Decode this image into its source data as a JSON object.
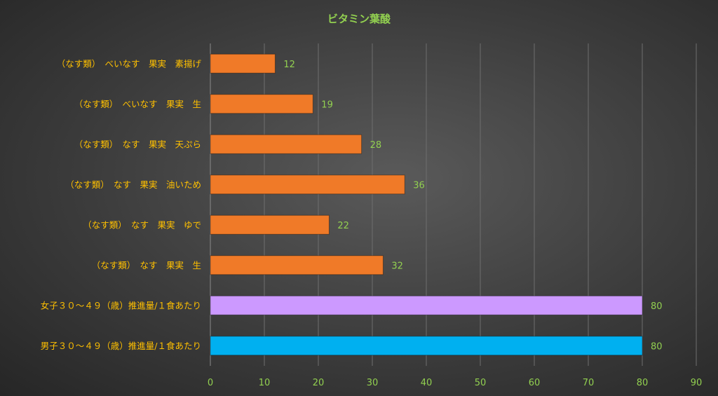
{
  "chart_data": {
    "type": "bar",
    "orientation": "horizontal",
    "title": "ビタミン葉酸",
    "categories": [
      "（なす類）　べいなす　果実　素揚げ",
      "（なす類）　べいなす　果実　生",
      "（なす類）　なす　果実　天ぷら",
      "（なす類）　なす　果実　油いため",
      "（なす類）　なす　果実　ゆで",
      "（なす類）　なす　果実　生",
      "女子３０～４９（歳）推進量/１食あたり",
      "男子３０～４９（歳）推進量/１食あたり"
    ],
    "values": [
      12,
      19,
      28,
      36,
      22,
      32,
      80,
      80
    ],
    "bar_colors": [
      "#f07a28",
      "#f07a28",
      "#f07a28",
      "#f07a28",
      "#f07a28",
      "#f07a28",
      "#cc99ff",
      "#00b0f0"
    ],
    "xlim": [
      0,
      90
    ],
    "xticks": [
      0,
      10,
      20,
      30,
      40,
      50,
      60,
      70,
      80,
      90
    ],
    "grid": true,
    "legend": "none"
  }
}
